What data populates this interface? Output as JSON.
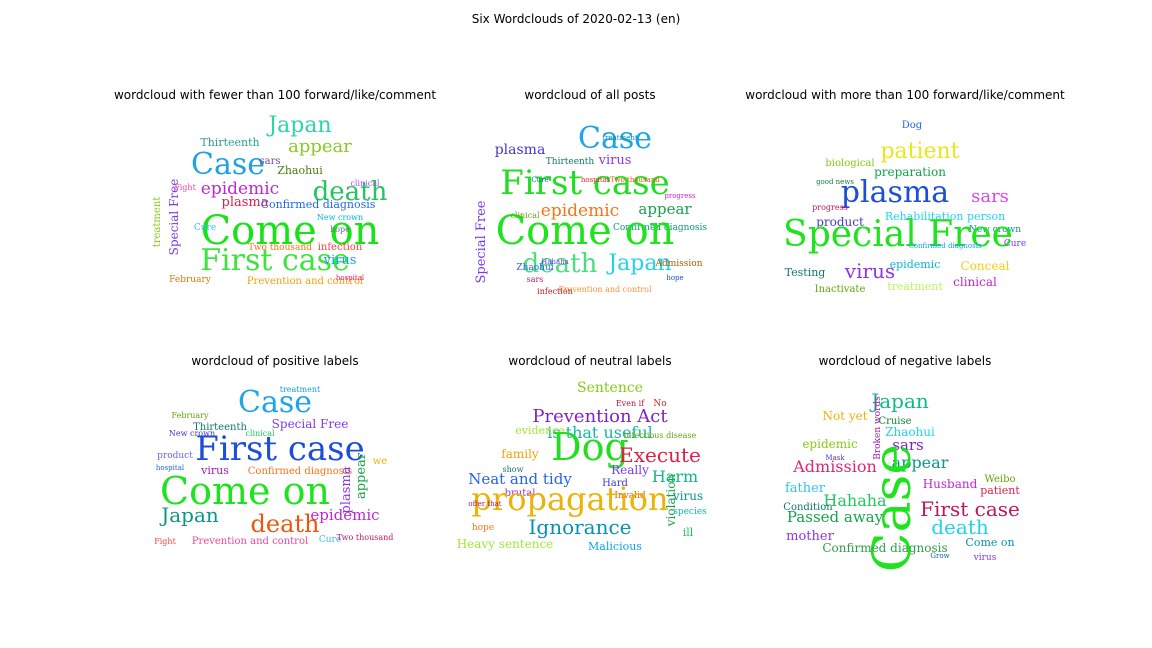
{
  "title": "Six Wordclouds of 2020-02-13 (en)",
  "panels": [
    {
      "title": "wordcloud with fewer than 100 forward/like/comment",
      "words": [
        {
          "t": "Japan",
          "c": "#2fd3a8"
        },
        {
          "t": "appear",
          "c": "#8ac926"
        },
        {
          "t": "Thirteenth",
          "c": "#2a9d8f"
        },
        {
          "t": "Case",
          "c": "#1fa2e0"
        },
        {
          "t": "sars",
          "c": "#6a4c93"
        },
        {
          "t": "Zhaohui",
          "c": "#4d7c0f"
        },
        {
          "t": "epidemic",
          "c": "#c026d3"
        },
        {
          "t": "death",
          "c": "#22c55e"
        },
        {
          "t": "plasma",
          "c": "#e11d48"
        },
        {
          "t": "Confirmed diagnosis",
          "c": "#2563eb"
        },
        {
          "t": "Special Free",
          "c": "#7c3aed"
        },
        {
          "t": "Come on",
          "c": "#18e318"
        },
        {
          "t": "First case",
          "c": "#3ee33e"
        },
        {
          "t": "virus",
          "c": "#0ea5e9"
        },
        {
          "t": "infection",
          "c": "#ef4444"
        },
        {
          "t": "Prevention and control",
          "c": "#f59e0b"
        },
        {
          "t": "February",
          "c": "#d97706"
        },
        {
          "t": "treatment",
          "c": "#84cc16"
        },
        {
          "t": "Cure",
          "c": "#38bdf8"
        },
        {
          "t": "Two thousand",
          "c": "#f97316"
        },
        {
          "t": "hospital",
          "c": "#db2777"
        },
        {
          "t": "clinical",
          "c": "#a855f7"
        },
        {
          "t": "New crown",
          "c": "#06b6d4"
        },
        {
          "t": "Fight",
          "c": "#ec4899"
        },
        {
          "t": "hope",
          "c": "#64748b"
        }
      ]
    },
    {
      "title": "wordcloud of all posts",
      "words": [
        {
          "t": "Case",
          "c": "#1ea5e9"
        },
        {
          "t": "plasma",
          "c": "#4338ca"
        },
        {
          "t": "Thirteenth",
          "c": "#0f766e"
        },
        {
          "t": "virus",
          "c": "#9333ea"
        },
        {
          "t": "First case",
          "c": "#22dd22"
        },
        {
          "t": "epidemic",
          "c": "#f97316"
        },
        {
          "t": "appear",
          "c": "#16a34a"
        },
        {
          "t": "Confirmed diagnosis",
          "c": "#0d9488"
        },
        {
          "t": "Special Free",
          "c": "#7c3aed"
        },
        {
          "t": "Come on",
          "c": "#1ee31e"
        },
        {
          "t": "death",
          "c": "#4ade80"
        },
        {
          "t": "Japan",
          "c": "#22d3ee"
        },
        {
          "t": "Admission",
          "c": "#a16207"
        },
        {
          "t": "Hahaha",
          "c": "#7c3aed"
        },
        {
          "t": "Zhaohui",
          "c": "#2563eb"
        },
        {
          "t": "sars",
          "c": "#be185d"
        },
        {
          "t": "hope",
          "c": "#1d4ed8"
        },
        {
          "t": "treatment",
          "c": "#0891b2"
        },
        {
          "t": "hospital",
          "c": "#dc2626"
        },
        {
          "t": "Two thousand",
          "c": "#ea580c"
        },
        {
          "t": "Prevention and control",
          "c": "#fb923c"
        },
        {
          "t": "infection",
          "c": "#b91c1c"
        },
        {
          "t": "clinical",
          "c": "#65a30d"
        },
        {
          "t": "progress",
          "c": "#c026d3"
        },
        {
          "t": "Cure",
          "c": "#0369a1"
        }
      ]
    },
    {
      "title": "wordcloud with more than 100 forward/like/comment",
      "words": [
        {
          "t": "Dog",
          "c": "#2563eb"
        },
        {
          "t": "patient",
          "c": "#e8e81c"
        },
        {
          "t": "biological",
          "c": "#84cc16"
        },
        {
          "t": "preparation",
          "c": "#16a34a"
        },
        {
          "t": "plasma",
          "c": "#1d4ed8"
        },
        {
          "t": "sars",
          "c": "#d946ef"
        },
        {
          "t": "Rehabilitation person",
          "c": "#22d3ee"
        },
        {
          "t": "product",
          "c": "#4338ca"
        },
        {
          "t": "New crown",
          "c": "#0d9488"
        },
        {
          "t": "Special Free",
          "c": "#1ee31e"
        },
        {
          "t": "Cure",
          "c": "#7c3aed"
        },
        {
          "t": "Testing",
          "c": "#0f766e"
        },
        {
          "t": "virus",
          "c": "#9333ea"
        },
        {
          "t": "epidemic",
          "c": "#06b6d4"
        },
        {
          "t": "Conceal",
          "c": "#facc15"
        },
        {
          "t": "clinical",
          "c": "#c026d3"
        },
        {
          "t": "Inactivate",
          "c": "#65a30d"
        },
        {
          "t": "treatment",
          "c": "#bef264"
        },
        {
          "t": "good news",
          "c": "#15803d"
        },
        {
          "t": "progress",
          "c": "#be185d"
        },
        {
          "t": "Confirmed diagnosis",
          "c": "#0ea5e9"
        }
      ]
    },
    {
      "title": "wordcloud of positive labels",
      "words": [
        {
          "t": "treatment",
          "c": "#0ea5e9"
        },
        {
          "t": "Case",
          "c": "#1ea5e9"
        },
        {
          "t": "February",
          "c": "#65a30d"
        },
        {
          "t": "Special Free",
          "c": "#7c3aed"
        },
        {
          "t": "Thirteenth",
          "c": "#0f766e"
        },
        {
          "t": "New crown",
          "c": "#4338ca"
        },
        {
          "t": "First case",
          "c": "#1d4ed8"
        },
        {
          "t": "virus",
          "c": "#a21caf"
        },
        {
          "t": "Confirmed diagnosis",
          "c": "#f97316"
        },
        {
          "t": "Come on",
          "c": "#1ee31e"
        },
        {
          "t": "appear",
          "c": "#16a34a"
        },
        {
          "t": "plasma",
          "c": "#9333ea"
        },
        {
          "t": "Japan",
          "c": "#0d9488"
        },
        {
          "t": "death",
          "c": "#ea580c"
        },
        {
          "t": "epidemic",
          "c": "#c026d3"
        },
        {
          "t": "Prevention and control",
          "c": "#ec4899"
        },
        {
          "t": "Fight",
          "c": "#ef4444"
        },
        {
          "t": "Cure",
          "c": "#38bdf8"
        },
        {
          "t": "Two thousand",
          "c": "#be185d"
        },
        {
          "t": "hospital",
          "c": "#2563eb"
        },
        {
          "t": "product",
          "c": "#6366f1"
        },
        {
          "t": "we",
          "c": "#eab308"
        },
        {
          "t": "clinical",
          "c": "#22c55e"
        }
      ]
    },
    {
      "title": "wordcloud of neutral labels",
      "words": [
        {
          "t": "Sentence",
          "c": "#84cc16"
        },
        {
          "t": "No",
          "c": "#dc2626"
        },
        {
          "t": "Even if",
          "c": "#be123c"
        },
        {
          "t": "Prevention Act",
          "c": "#7e22ce"
        },
        {
          "t": "is that useful",
          "c": "#14b8a6"
        },
        {
          "t": "evidence",
          "c": "#a3e635"
        },
        {
          "t": "family",
          "c": "#f59e0b"
        },
        {
          "t": "Dog",
          "c": "#22dd22"
        },
        {
          "t": "Execute",
          "c": "#e11d48"
        },
        {
          "t": "show",
          "c": "#0f766e"
        },
        {
          "t": "Really",
          "c": "#7c3aed"
        },
        {
          "t": "Harm",
          "c": "#10b981"
        },
        {
          "t": "Neat and tidy",
          "c": "#2563eb"
        },
        {
          "t": "Hard",
          "c": "#4338ca"
        },
        {
          "t": "brutal",
          "c": "#9333ea"
        },
        {
          "t": "Invalid",
          "c": "#ea580c"
        },
        {
          "t": "violation",
          "c": "#16a34a"
        },
        {
          "t": "virus",
          "c": "#0d9488"
        },
        {
          "t": "species",
          "c": "#14b8a6"
        },
        {
          "t": "propagation",
          "c": "#eab308"
        },
        {
          "t": "ill",
          "c": "#22c55e"
        },
        {
          "t": "hope",
          "c": "#f97316"
        },
        {
          "t": "Ignorance",
          "c": "#0891b2"
        },
        {
          "t": "Heavy sentence",
          "c": "#a3e635"
        },
        {
          "t": "Malicious",
          "c": "#0ea5e9"
        },
        {
          "t": "infectious disease",
          "c": "#65a30d"
        },
        {
          "t": "offer that",
          "c": "#be185d"
        }
      ]
    },
    {
      "title": "wordcloud of negative labels",
      "words": [
        {
          "t": "Japan",
          "c": "#10b981"
        },
        {
          "t": "Not yet",
          "c": "#eab308"
        },
        {
          "t": "Cruise",
          "c": "#15803d"
        },
        {
          "t": "Zhaohui",
          "c": "#22d3ee"
        },
        {
          "t": "epidemic",
          "c": "#84cc16"
        },
        {
          "t": "sars",
          "c": "#7e22ce"
        },
        {
          "t": "appear",
          "c": "#0d9488"
        },
        {
          "t": "Admission",
          "c": "#db2777"
        },
        {
          "t": "Case",
          "c": "#1ee31e"
        },
        {
          "t": "Husband",
          "c": "#c026d3"
        },
        {
          "t": "father",
          "c": "#38bdf8"
        },
        {
          "t": "Weibo",
          "c": "#65a30d"
        },
        {
          "t": "patient",
          "c": "#e11d48"
        },
        {
          "t": "Hahaha",
          "c": "#22c55e"
        },
        {
          "t": "First case",
          "c": "#be185d"
        },
        {
          "t": "Condition",
          "c": "#0f766e"
        },
        {
          "t": "Passed away",
          "c": "#16a34a"
        },
        {
          "t": "death",
          "c": "#22d3ee"
        },
        {
          "t": "mother",
          "c": "#9333ea"
        },
        {
          "t": "Come on",
          "c": "#0891b2"
        },
        {
          "t": "Confirmed diagnosis",
          "c": "#2f9e44"
        },
        {
          "t": "virus",
          "c": "#7c3aed"
        },
        {
          "t": "Broken words",
          "c": "#a21caf"
        },
        {
          "t": "Mask",
          "c": "#4338ca"
        },
        {
          "t": "Grow",
          "c": "#0369a1"
        }
      ]
    }
  ]
}
